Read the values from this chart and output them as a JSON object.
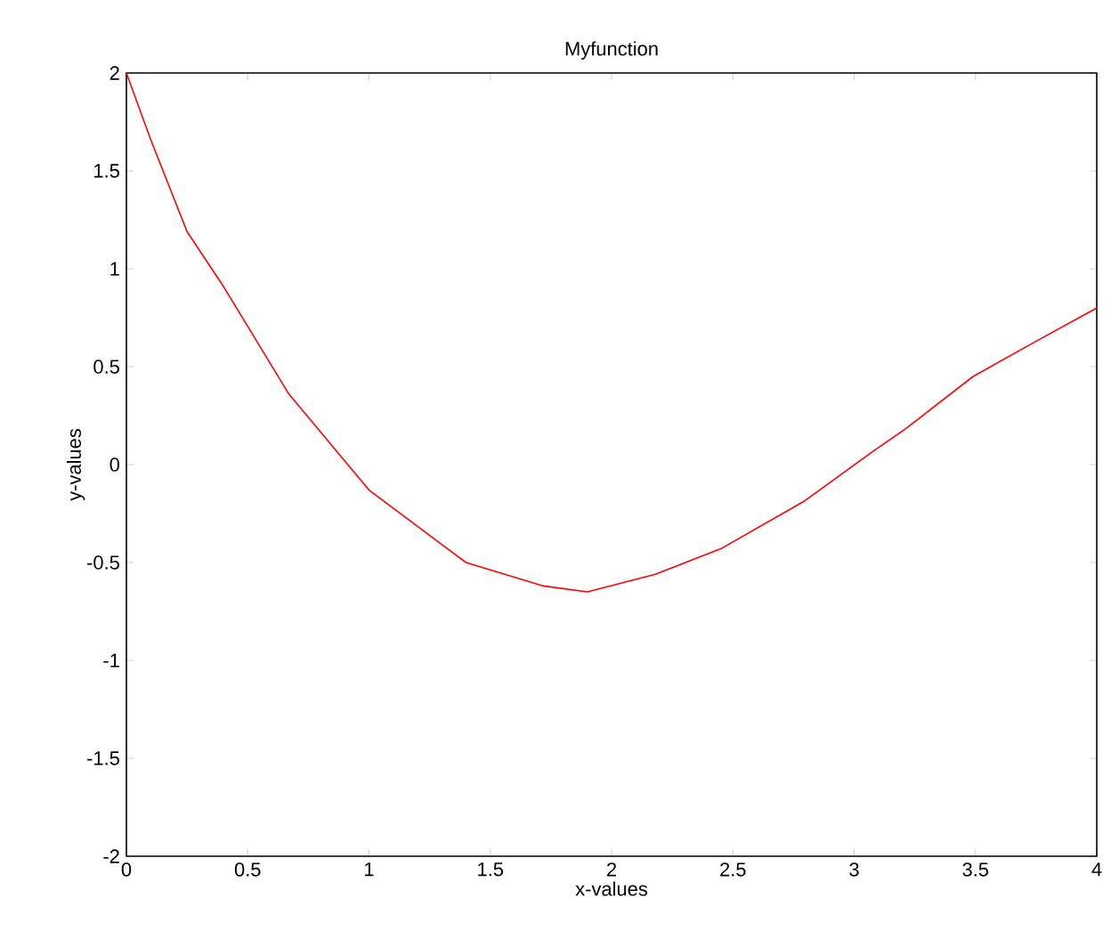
{
  "chart_data": {
    "type": "line",
    "title": "Myfunction",
    "xlabel": "x-values",
    "ylabel": "y-values",
    "xlim": [
      0,
      4
    ],
    "ylim": [
      -2,
      2
    ],
    "xticks": [
      0,
      0.5,
      1,
      1.5,
      2,
      2.5,
      3,
      3.5,
      4
    ],
    "yticks": [
      -2,
      -1.5,
      -1,
      -0.5,
      0,
      0.5,
      1,
      1.5,
      2
    ],
    "series": [
      {
        "color": "#ff0000",
        "x": [
          0,
          0.1,
          0.25,
          0.4,
          0.67,
          1,
          1.4,
          1.72,
          1.9,
          2.18,
          2.45,
          2.79,
          3.08,
          3.22,
          3.49,
          3.75,
          4
        ],
        "values": [
          2,
          1.66,
          1.19,
          0.91,
          0.36,
          -0.13,
          -0.5,
          -0.62,
          -0.65,
          -0.56,
          -0.43,
          -0.19,
          0.07,
          0.19,
          0.45,
          0.63,
          0.8
        ]
      }
    ]
  }
}
